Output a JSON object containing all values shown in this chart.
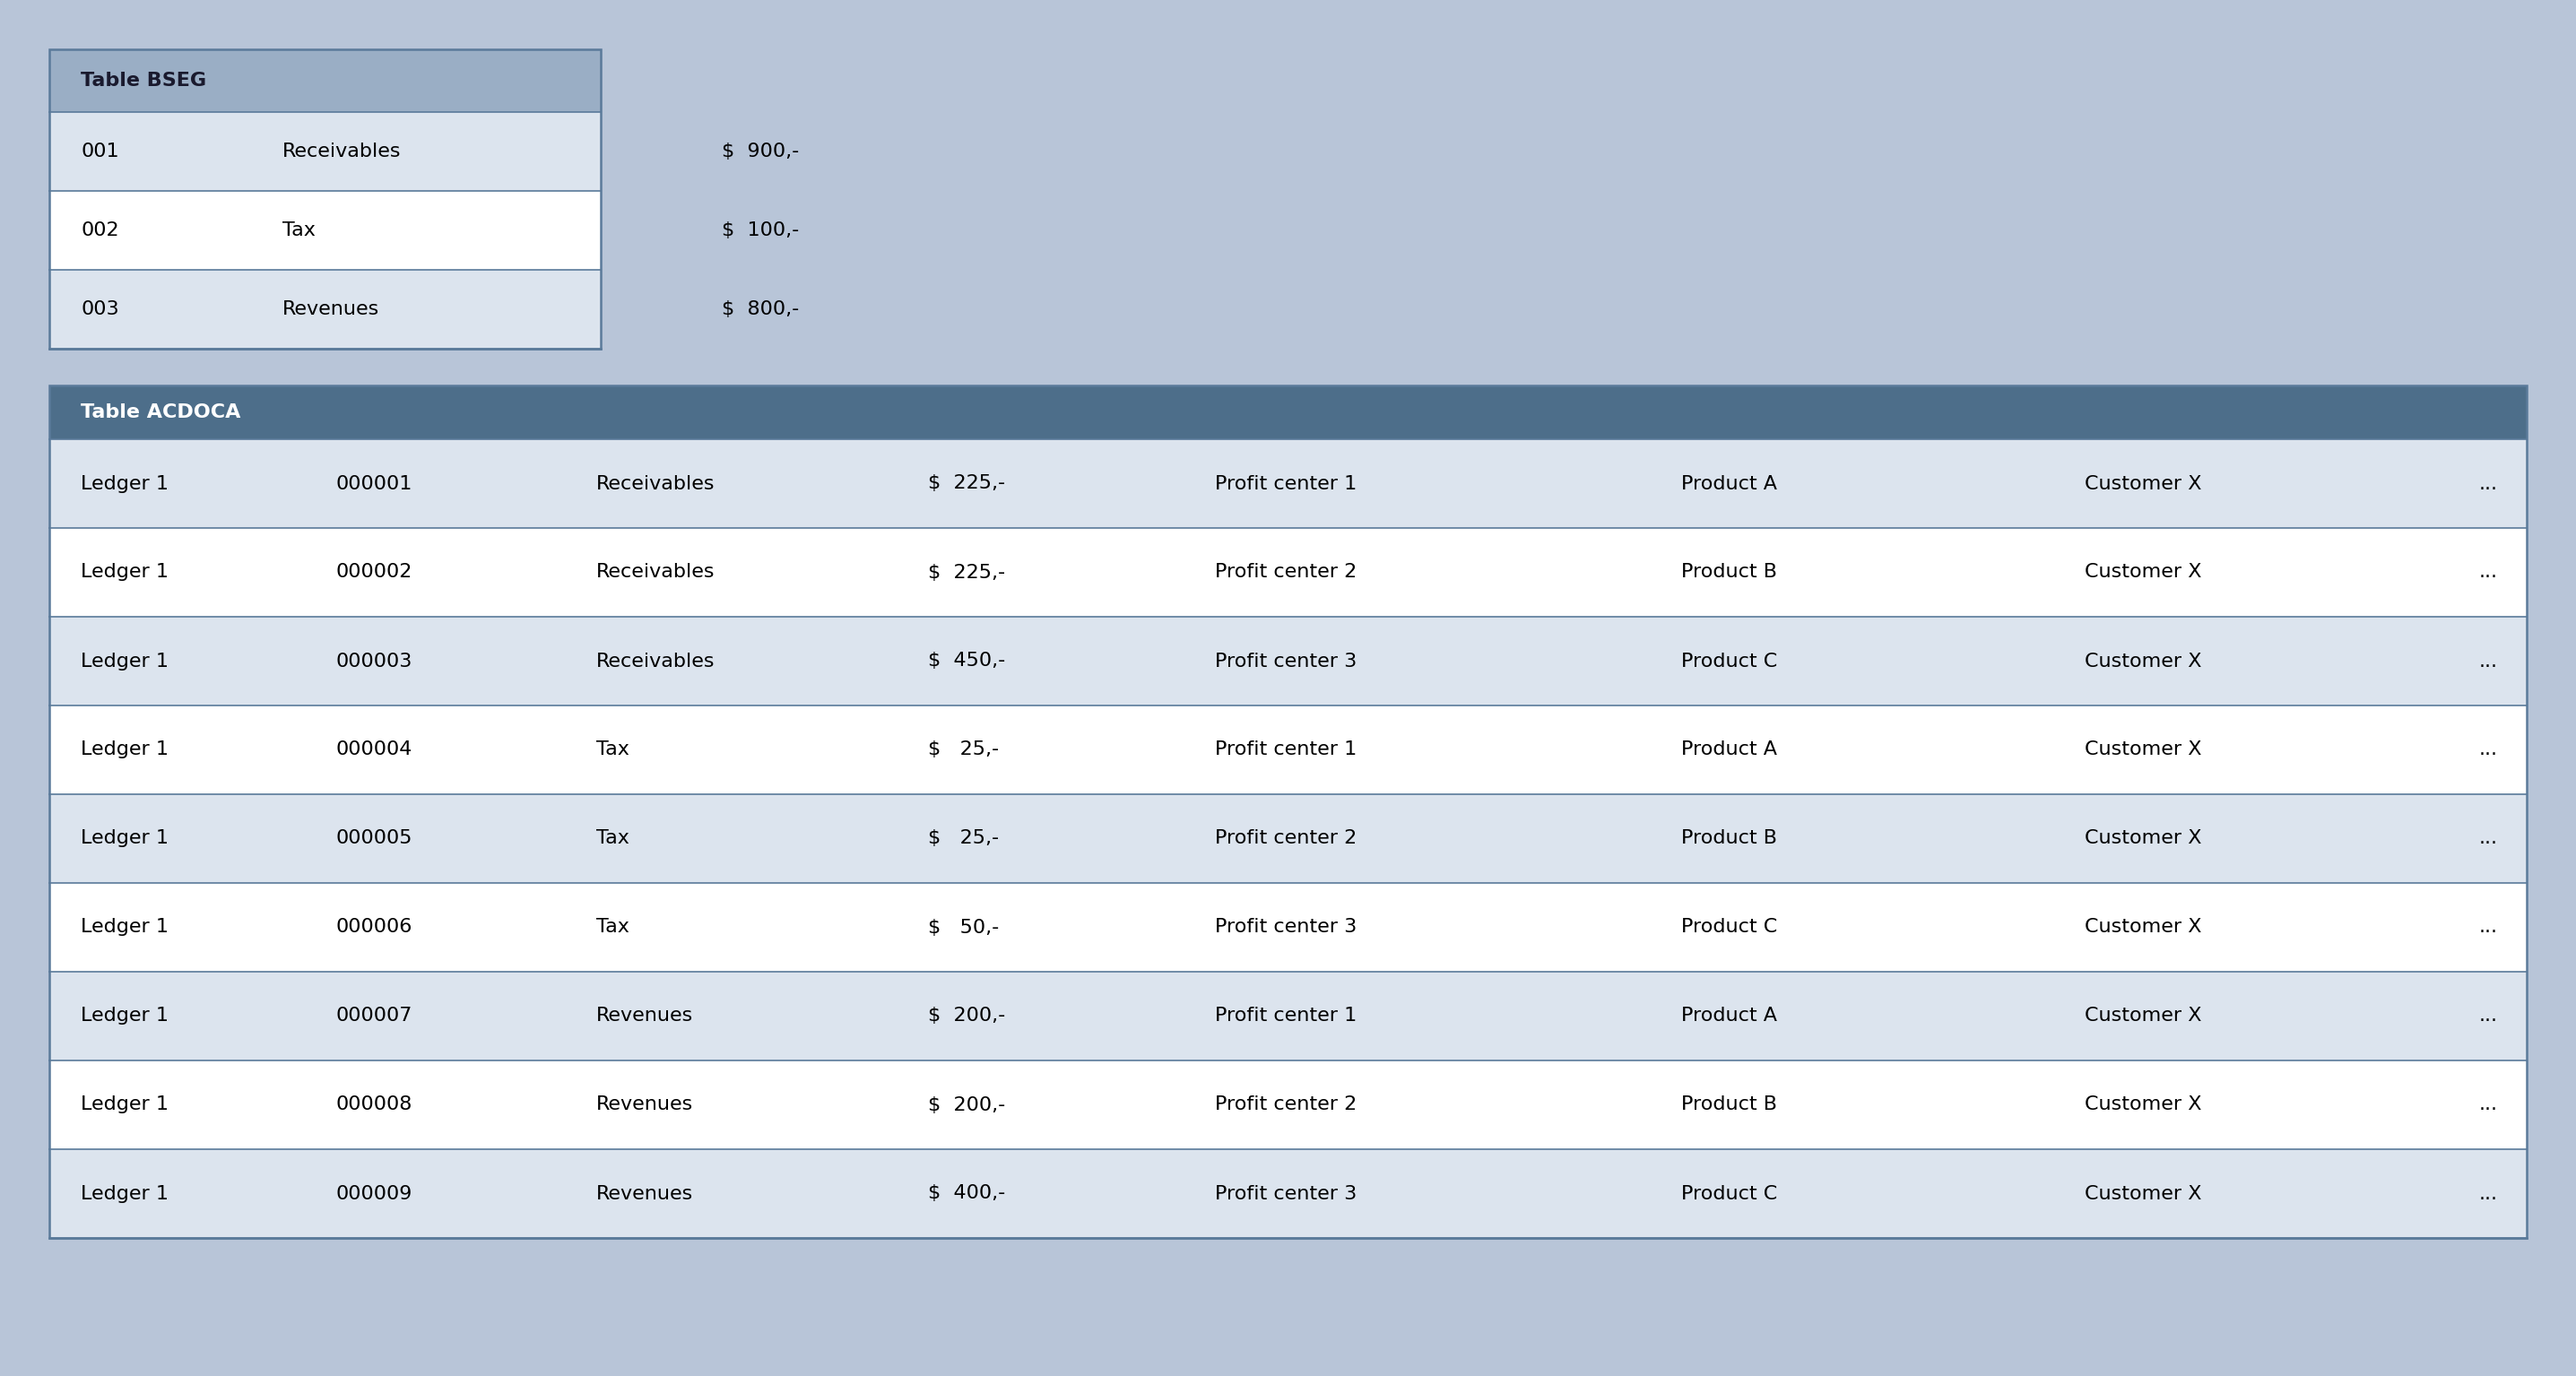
{
  "background_color": "#b8c5d8",
  "bseg": {
    "title": "Table BSEG",
    "header_bg": "#9aaec5",
    "header_text_color": "#1a1a2e",
    "row_bg_odd": "#dce4ee",
    "row_bg_even": "#ffffff",
    "border_color": "#5a7a9a",
    "rows": [
      [
        "001",
        "Receivables",
        "$  900,-"
      ],
      [
        "002",
        "Tax",
        "$  100,-"
      ],
      [
        "003",
        "Revenues",
        "$  800,-"
      ]
    ],
    "col_offsets": [
      0.35,
      2.6,
      7.5
    ]
  },
  "acdoca": {
    "title": "Table ACDOCA",
    "header_bg": "#4d6e8a",
    "header_text_color": "#ffffff",
    "row_bg_odd": "#dce4ee",
    "row_bg_even": "#ffffff",
    "border_color": "#5a7a9a",
    "rows": [
      [
        "Ledger 1",
        "000001",
        "Receivables",
        "$  225,-",
        "Profit center 1",
        "Product A",
        "Customer X",
        "..."
      ],
      [
        "Ledger 1",
        "000002",
        "Receivables",
        "$  225,-",
        "Profit center 2",
        "Product B",
        "Customer X",
        "..."
      ],
      [
        "Ledger 1",
        "000003",
        "Receivables",
        "$  450,-",
        "Profit center 3",
        "Product C",
        "Customer X",
        "..."
      ],
      [
        "Ledger 1",
        "000004",
        "Tax",
        "$   25,-",
        "Profit center 1",
        "Product A",
        "Customer X",
        "..."
      ],
      [
        "Ledger 1",
        "000005",
        "Tax",
        "$   25,-",
        "Profit center 2",
        "Product B",
        "Customer X",
        "..."
      ],
      [
        "Ledger 1",
        "000006",
        "Tax",
        "$   50,-",
        "Profit center 3",
        "Product C",
        "Customer X",
        "..."
      ],
      [
        "Ledger 1",
        "000007",
        "Revenues",
        "$  200,-",
        "Profit center 1",
        "Product A",
        "Customer X",
        "..."
      ],
      [
        "Ledger 1",
        "000008",
        "Revenues",
        "$  200,-",
        "Profit center 2",
        "Product B",
        "Customer X",
        "..."
      ],
      [
        "Ledger 1",
        "000009",
        "Revenues",
        "$  400,-",
        "Profit center 3",
        "Product C",
        "Customer X",
        "..."
      ]
    ],
    "col_offsets": [
      0.35,
      3.2,
      6.1,
      9.8,
      13.0,
      18.2,
      22.7,
      27.1
    ]
  },
  "font_size": 16,
  "header_font_size": 16
}
